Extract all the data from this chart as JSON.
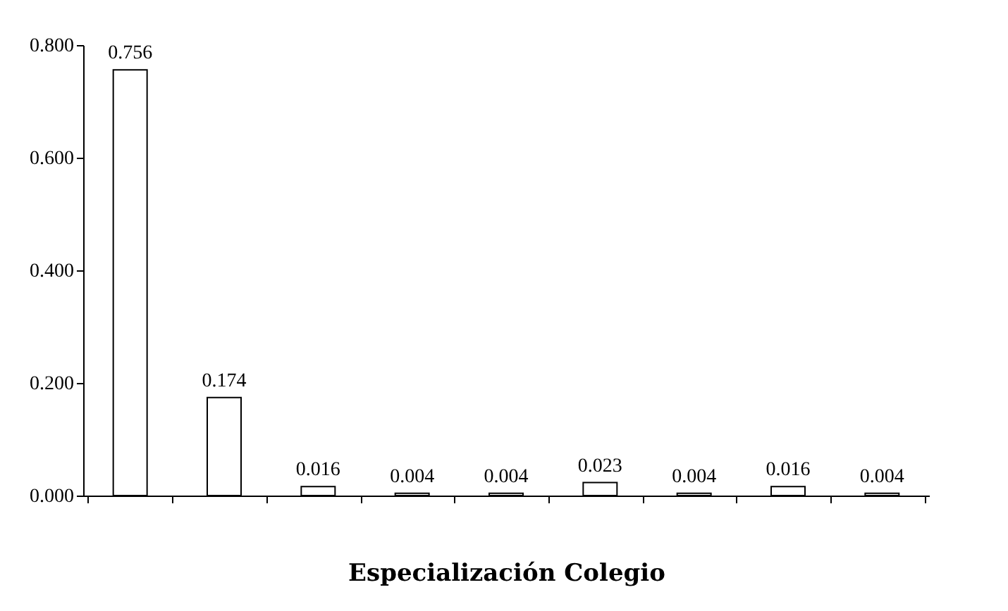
{
  "chart_data": {
    "type": "bar",
    "xlabel": "Especialización Colegio",
    "categories": [
      null,
      null,
      null,
      null,
      null,
      null,
      null,
      null,
      null
    ],
    "values": [
      0.756,
      0.174,
      0.016,
      0.004,
      0.004,
      0.023,
      0.004,
      0.016,
      0.004
    ],
    "color": "#ffffff",
    "data_labels": true,
    "grid": false,
    "ylim": [
      0,
      0.8
    ],
    "yticks": [
      {
        "value": 0,
        "label": "0.000"
      },
      {
        "value": 0.2,
        "label": "0.200"
      },
      {
        "value": 0.4,
        "label": "0.400"
      },
      {
        "value": 0.6,
        "label": "0.600"
      },
      {
        "value": 0.8,
        "label": "0.800"
      }
    ]
  }
}
